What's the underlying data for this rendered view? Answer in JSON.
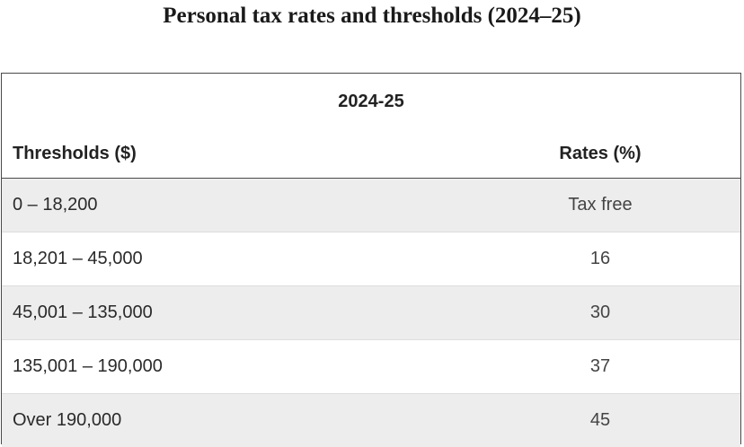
{
  "title": "Personal tax rates and thresholds (2024–25)",
  "table": {
    "year_header": "2024-25",
    "columns": {
      "threshold": "Thresholds ($)",
      "rate": "Rates (%)"
    },
    "rows": [
      {
        "threshold": "0 – 18,200",
        "rate": "Tax free"
      },
      {
        "threshold": "18,201 – 45,000",
        "rate": "16"
      },
      {
        "threshold": "45,001 – 135,000",
        "rate": "30"
      },
      {
        "threshold": "135,001 – 190,000",
        "rate": "37"
      },
      {
        "threshold": "Over 190,000",
        "rate": "45"
      }
    ]
  }
}
